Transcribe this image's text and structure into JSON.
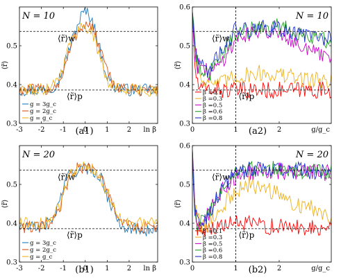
{
  "chart_data": [
    {
      "panel_label": "(a1)",
      "type": "line",
      "annotation": "N = 10",
      "xlabel": "ln β",
      "ylabel": "⟨r̃⟩",
      "xlim": [
        -3,
        3.3
      ],
      "ylim": [
        0.3,
        0.6
      ],
      "xticks": [
        "-3",
        "-2",
        "-1",
        "0",
        "1",
        "2"
      ],
      "yticks": [
        "0.3",
        "0.4",
        "0.5"
      ],
      "reference_lines": [
        {
          "label": "⟨r̃⟩w",
          "y": 0.537
        },
        {
          "label": "⟨r̃⟩p",
          "y": 0.386
        }
      ],
      "legend_placement": "bottom-left",
      "series": [
        {
          "name": "g = 3g_c",
          "color": "#1f77b4",
          "x": [
            -3,
            -2,
            -1.5,
            -1.2,
            -1,
            -0.8,
            -0.5,
            -0.2,
            0,
            0.3,
            0.5,
            0.8,
            1,
            1.3,
            2,
            3.3
          ],
          "y": [
            0.386,
            0.386,
            0.392,
            0.415,
            0.44,
            0.48,
            0.53,
            0.575,
            0.59,
            0.57,
            0.53,
            0.46,
            0.42,
            0.395,
            0.386,
            0.386
          ]
        },
        {
          "name": "g = 2g_c",
          "color": "#d95319",
          "x": [
            -3,
            -2,
            -1.5,
            -1.2,
            -1,
            -0.8,
            -0.5,
            -0.2,
            0,
            0.3,
            0.5,
            0.8,
            1,
            1.3,
            2,
            3.3
          ],
          "y": [
            0.386,
            0.386,
            0.39,
            0.405,
            0.43,
            0.47,
            0.52,
            0.548,
            0.555,
            0.55,
            0.52,
            0.47,
            0.43,
            0.4,
            0.386,
            0.386
          ]
        },
        {
          "name": "g = g_c",
          "color": "#edb120",
          "x": [
            -3,
            -2,
            -1.5,
            -1.2,
            -1,
            -0.8,
            -0.5,
            -0.2,
            0,
            0.3,
            0.5,
            0.8,
            1,
            1.3,
            2,
            3.3
          ],
          "y": [
            0.386,
            0.386,
            0.4,
            0.42,
            0.45,
            0.49,
            0.53,
            0.548,
            0.55,
            0.54,
            0.5,
            0.45,
            0.41,
            0.395,
            0.386,
            0.386
          ]
        }
      ]
    },
    {
      "panel_label": "(a2)",
      "type": "line",
      "annotation": "N = 10",
      "xlabel": "g/g_c",
      "ylabel": "⟨r̃⟩",
      "xlim": [
        0,
        3.2
      ],
      "ylim": [
        0.3,
        0.6
      ],
      "xticks": [
        "0",
        "1",
        "2"
      ],
      "yticks": [
        "0.3",
        "0.4",
        "0.5",
        "0.6"
      ],
      "reference_lines": [
        {
          "label": "⟨r̃⟩w",
          "y": 0.537
        },
        {
          "label": "⟨r̃⟩p",
          "y": 0.386
        }
      ],
      "vertical_line": 1,
      "legend_placement": "bottom-left",
      "series": [
        {
          "name": "β =0.1",
          "color": "#ff0000",
          "x": [
            0,
            0.05,
            0.1,
            0.2,
            0.4,
            0.6,
            0.8,
            1,
            1.5,
            2,
            2.5,
            3.2
          ],
          "y": [
            0.6,
            0.46,
            0.41,
            0.385,
            0.39,
            0.388,
            0.385,
            0.385,
            0.385,
            0.385,
            0.386,
            0.386
          ]
        },
        {
          "name": "β =0.3",
          "color": "#edb120",
          "x": [
            0,
            0.05,
            0.1,
            0.2,
            0.4,
            0.6,
            0.8,
            1,
            1.5,
            2,
            2.5,
            3.2
          ],
          "y": [
            0.6,
            0.48,
            0.44,
            0.42,
            0.41,
            0.4,
            0.41,
            0.42,
            0.43,
            0.425,
            0.415,
            0.41
          ]
        },
        {
          "name": "β =0.5",
          "color": "#cc00cc",
          "x": [
            0,
            0.05,
            0.1,
            0.2,
            0.4,
            0.6,
            0.8,
            1,
            1.5,
            2,
            2.5,
            3.2
          ],
          "y": [
            0.6,
            0.49,
            0.46,
            0.44,
            0.43,
            0.45,
            0.48,
            0.52,
            0.54,
            0.54,
            0.5,
            0.46
          ]
        },
        {
          "name": "β =0.6",
          "color": "#20a020",
          "x": [
            0,
            0.05,
            0.1,
            0.2,
            0.4,
            0.6,
            0.8,
            1,
            1.5,
            2,
            2.5,
            3.2
          ],
          "y": [
            0.6,
            0.5,
            0.47,
            0.44,
            0.43,
            0.46,
            0.5,
            0.53,
            0.545,
            0.55,
            0.53,
            0.51
          ]
        },
        {
          "name": "β =0.8",
          "color": "#2030d0",
          "x": [
            0,
            0.05,
            0.1,
            0.2,
            0.4,
            0.6,
            0.8,
            1,
            1.5,
            2,
            2.5,
            3.2
          ],
          "y": [
            0.6,
            0.5,
            0.48,
            0.45,
            0.44,
            0.47,
            0.51,
            0.54,
            0.545,
            0.545,
            0.53,
            0.52
          ]
        }
      ]
    },
    {
      "panel_label": "(b1)",
      "type": "line",
      "annotation": "N = 20",
      "xlabel": "ln β",
      "ylabel": "⟨r̃⟩",
      "xlim": [
        -3,
        3.3
      ],
      "ylim": [
        0.3,
        0.6
      ],
      "xticks": [
        "-3",
        "-2",
        "-1",
        "0",
        "1",
        "2"
      ],
      "yticks": [
        "0.3",
        "0.4",
        "0.5"
      ],
      "reference_lines": [
        {
          "label": "⟨r̃⟩w",
          "y": 0.537
        },
        {
          "label": "⟨r̃⟩p",
          "y": 0.386
        }
      ],
      "legend_placement": "bottom-left",
      "series": [
        {
          "name": "g = 3g_c",
          "color": "#1f77b4",
          "x": [
            -3,
            -2,
            -1.5,
            -1.2,
            -1,
            -0.7,
            -0.4,
            0,
            0.4,
            0.7,
            1,
            1.3,
            1.7,
            2.2,
            3.3
          ],
          "y": [
            0.39,
            0.39,
            0.41,
            0.45,
            0.49,
            0.53,
            0.535,
            0.54,
            0.535,
            0.52,
            0.47,
            0.43,
            0.395,
            0.385,
            0.38
          ]
        },
        {
          "name": "g = 2g_c",
          "color": "#d95319",
          "x": [
            -3,
            -2,
            -1.5,
            -1.2,
            -1,
            -0.7,
            -0.4,
            0,
            0.4,
            0.7,
            1,
            1.3,
            1.7,
            2.2,
            3.3
          ],
          "y": [
            0.39,
            0.39,
            0.4,
            0.43,
            0.47,
            0.52,
            0.54,
            0.545,
            0.54,
            0.52,
            0.48,
            0.44,
            0.4,
            0.39,
            0.39
          ]
        },
        {
          "name": "g = g_c",
          "color": "#edb120",
          "x": [
            -3,
            -2,
            -1.5,
            -1.2,
            -1,
            -0.7,
            -0.4,
            0,
            0.4,
            0.7,
            1,
            1.3,
            1.7,
            2.2,
            3.3
          ],
          "y": [
            0.4,
            0.4,
            0.41,
            0.44,
            0.48,
            0.52,
            0.54,
            0.545,
            0.54,
            0.52,
            0.48,
            0.44,
            0.41,
            0.4,
            0.4
          ]
        }
      ]
    },
    {
      "panel_label": "(b2)",
      "type": "line",
      "annotation": "N = 20",
      "xlabel": "g/g_c",
      "ylabel": "⟨r̃⟩",
      "xlim": [
        0,
        3.2
      ],
      "ylim": [
        0.3,
        0.6
      ],
      "xticks": [
        "0",
        "1",
        "2"
      ],
      "yticks": [
        "0.3",
        "0.4",
        "0.5",
        "0.6"
      ],
      "reference_lines": [
        {
          "label": "⟨r̃⟩w",
          "y": 0.537
        },
        {
          "label": "⟨r̃⟩p",
          "y": 0.386
        }
      ],
      "vertical_line": 1,
      "legend_placement": "bottom-left",
      "series": [
        {
          "name": "β =0.1",
          "color": "#ff0000",
          "x": [
            0,
            0.05,
            0.1,
            0.2,
            0.4,
            0.6,
            0.8,
            1,
            1.5,
            2,
            2.5,
            3.2
          ],
          "y": [
            0.6,
            0.43,
            0.4,
            0.385,
            0.39,
            0.39,
            0.395,
            0.4,
            0.395,
            0.39,
            0.39,
            0.39
          ]
        },
        {
          "name": "β =0.3",
          "color": "#edb120",
          "x": [
            0,
            0.05,
            0.1,
            0.2,
            0.4,
            0.6,
            0.8,
            1,
            1.3,
            1.7,
            2.2,
            2.7,
            3.2
          ],
          "y": [
            0.6,
            0.44,
            0.41,
            0.39,
            0.4,
            0.43,
            0.46,
            0.48,
            0.5,
            0.49,
            0.46,
            0.44,
            0.42
          ]
        },
        {
          "name": "β =0.5",
          "color": "#cc00cc",
          "x": [
            0,
            0.05,
            0.1,
            0.2,
            0.4,
            0.6,
            0.8,
            1,
            1.5,
            2,
            2.5,
            3.2
          ],
          "y": [
            0.6,
            0.45,
            0.41,
            0.4,
            0.43,
            0.47,
            0.5,
            0.52,
            0.535,
            0.535,
            0.53,
            0.53
          ]
        },
        {
          "name": "β =0.6",
          "color": "#20a020",
          "x": [
            0,
            0.05,
            0.1,
            0.2,
            0.4,
            0.6,
            0.8,
            1,
            1.5,
            2,
            2.5,
            3.2
          ],
          "y": [
            0.6,
            0.45,
            0.41,
            0.4,
            0.43,
            0.47,
            0.5,
            0.53,
            0.54,
            0.54,
            0.535,
            0.53
          ]
        },
        {
          "name": "β =0.8",
          "color": "#2030d0",
          "x": [
            0,
            0.05,
            0.1,
            0.2,
            0.4,
            0.6,
            0.8,
            1,
            1.5,
            2,
            2.5,
            3.2
          ],
          "y": [
            0.6,
            0.45,
            0.41,
            0.4,
            0.43,
            0.47,
            0.51,
            0.53,
            0.54,
            0.54,
            0.535,
            0.53
          ]
        }
      ]
    }
  ]
}
